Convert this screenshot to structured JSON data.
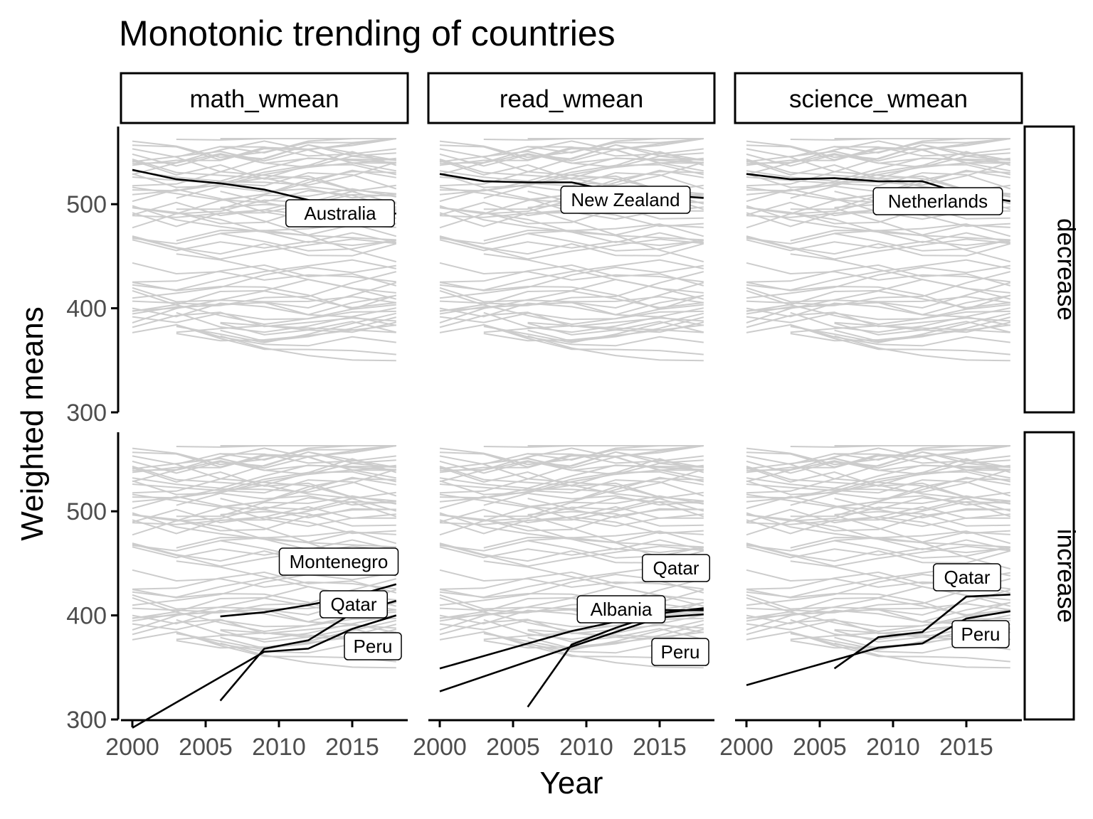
{
  "chart_data": {
    "type": "line",
    "title": "Monotonic trending of countries",
    "xlabel": "Year",
    "ylabel": "Weighted means",
    "x_ticks": [
      2000,
      2005,
      2010,
      2015
    ],
    "y_ticks": [
      300,
      400,
      500
    ],
    "xlim": [
      1999,
      2019
    ],
    "ylim": [
      296,
      573
    ],
    "grid": false,
    "legend": "none",
    "colors": {
      "background_lines": "#cccccc",
      "highlight_lines": "#000000"
    },
    "columns": [
      "math_wmean",
      "read_wmean",
      "science_wmean"
    ],
    "rows": [
      "decrease",
      "increase"
    ],
    "background_series_note_count": 70,
    "panels": [
      {
        "row": "decrease",
        "column": "math_wmean",
        "highlight": [
          {
            "label": "Australia",
            "x": [
              2000,
              2003,
              2006,
              2009,
              2012,
              2015,
              2018
            ],
            "y": [
              533,
              524,
              520,
              514,
              504,
              494,
              491
            ]
          }
        ]
      },
      {
        "row": "decrease",
        "column": "read_wmean",
        "highlight": [
          {
            "label": "New Zealand",
            "x": [
              2000,
              2003,
              2006,
              2009,
              2012,
              2015,
              2018
            ],
            "y": [
              529,
              522,
              521,
              521,
              512,
              509,
              506
            ]
          }
        ]
      },
      {
        "row": "decrease",
        "column": "science_wmean",
        "highlight": [
          {
            "label": "Netherlands",
            "x": [
              2000,
              2003,
              2006,
              2009,
              2012,
              2015,
              2018
            ],
            "y": [
              529,
              524,
              525,
              522,
              522,
              509,
              503
            ]
          }
        ]
      },
      {
        "row": "increase",
        "column": "math_wmean",
        "highlight": [
          {
            "label": "Montenegro",
            "x": [
              2006,
              2009,
              2012,
              2015,
              2018
            ],
            "y": [
              399,
              403,
              410,
              418,
              430
            ]
          },
          {
            "label": "Qatar",
            "x": [
              2006,
              2009,
              2012,
              2015,
              2018
            ],
            "y": [
              318,
              368,
              376,
              402,
              414
            ]
          },
          {
            "label": "Peru",
            "x": [
              2000,
              2009,
              2012,
              2015,
              2018
            ],
            "y": [
              292,
              365,
              368,
              387,
              400
            ]
          }
        ]
      },
      {
        "row": "increase",
        "column": "read_wmean",
        "highlight": [
          {
            "label": "Qatar",
            "x": [
              2006,
              2009,
              2012,
              2015,
              2018
            ],
            "y": [
              312,
              372,
              388,
              402,
              407
            ]
          },
          {
            "label": "Albania",
            "x": [
              2000,
              2009,
              2012,
              2015,
              2018
            ],
            "y": [
              349,
              385,
              394,
              405,
              405
            ]
          },
          {
            "label": "Peru",
            "x": [
              2000,
              2009,
              2012,
              2015,
              2018
            ],
            "y": [
              327,
              370,
              384,
              398,
              401
            ]
          }
        ]
      },
      {
        "row": "increase",
        "column": "science_wmean",
        "highlight": [
          {
            "label": "Qatar",
            "x": [
              2006,
              2009,
              2012,
              2015,
              2018
            ],
            "y": [
              349,
              379,
              384,
              418,
              420
            ]
          },
          {
            "label": "Peru",
            "x": [
              2000,
              2009,
              2012,
              2015,
              2018
            ],
            "y": [
              333,
              369,
              373,
              397,
              404
            ]
          }
        ]
      }
    ]
  }
}
